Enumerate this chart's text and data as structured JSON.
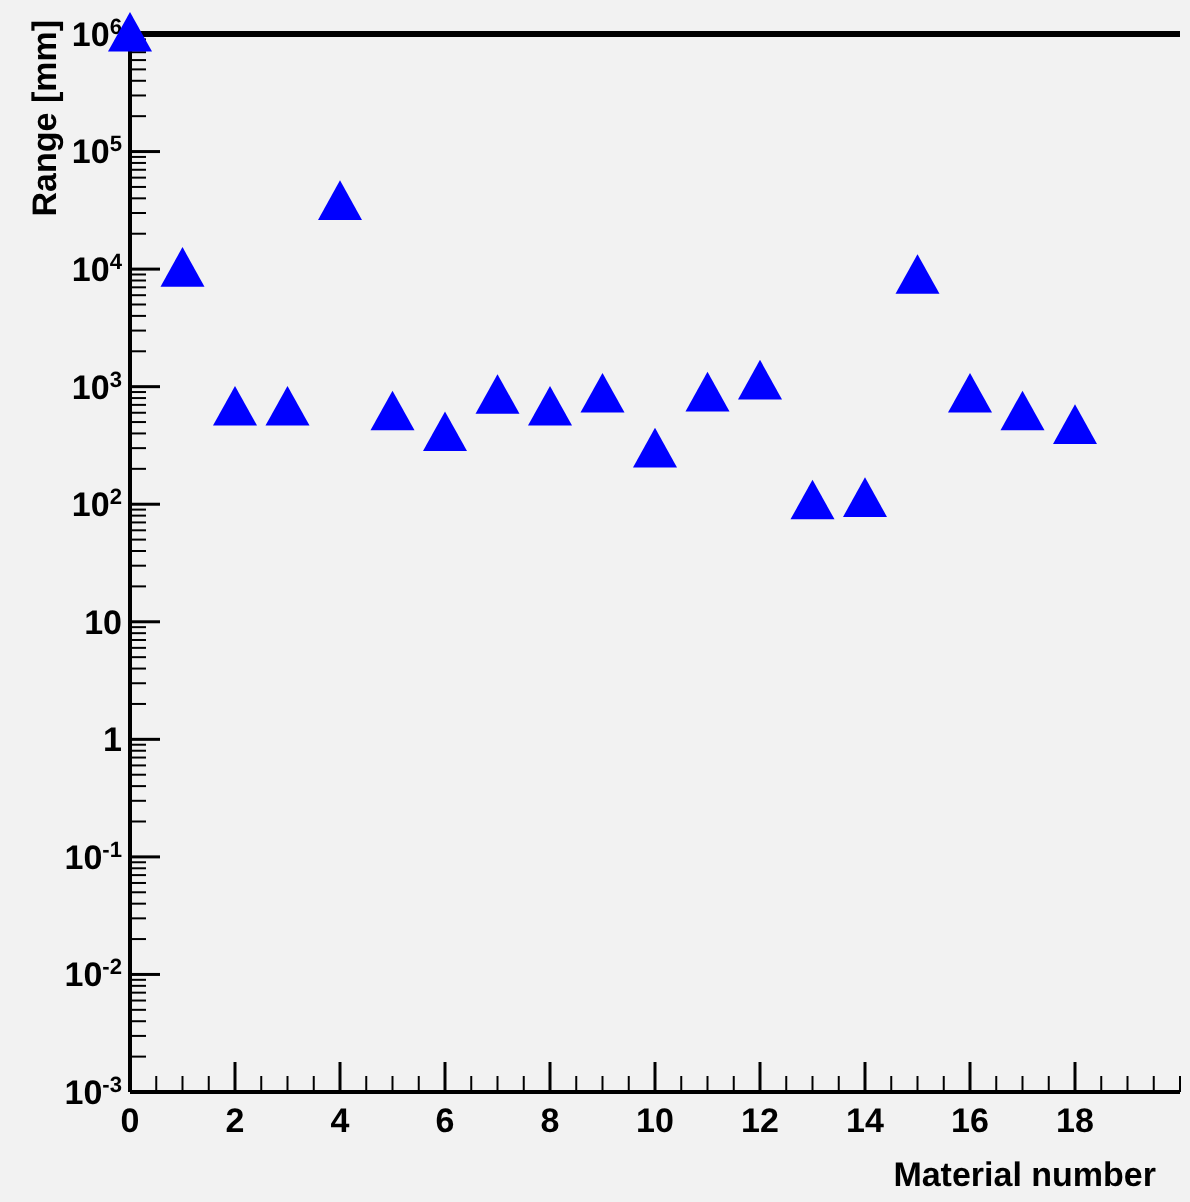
{
  "chart_data": {
    "type": "scatter",
    "xlabel": "Material number",
    "ylabel": "Range [mm]",
    "x": [
      0,
      1,
      2,
      3,
      4,
      5,
      6,
      7,
      8,
      9,
      10,
      11,
      12,
      13,
      14,
      15,
      16,
      17,
      18
    ],
    "series": [
      {
        "color": "#0000ff",
        "values": [
          1000000,
          10000,
          660,
          660,
          37000,
          600,
          400,
          830,
          660,
          850,
          290,
          870,
          1100,
          105,
          110,
          8700,
          850,
          600,
          460
        ]
      }
    ],
    "marker": "triangle",
    "log": "y",
    "xlim": [
      0,
      20
    ],
    "xticks": [
      0,
      2,
      4,
      6,
      8,
      10,
      12,
      14,
      16,
      18
    ],
    "ylim": [
      0.001,
      1000000
    ],
    "yticks": [
      {
        "value": 0.001,
        "label": "10$^{-3}$"
      },
      {
        "value": 0.01,
        "label": "10$^{-2}$"
      },
      {
        "value": 0.1,
        "label": "10$^{-1}$"
      },
      1,
      10,
      {
        "value": 100,
        "label": "10$^{2}$"
      },
      {
        "value": 1000,
        "label": "10$^{3}$"
      },
      {
        "value": 10000,
        "label": "10$^{4}$"
      },
      {
        "value": 100000,
        "label": "10$^{5}$"
      },
      {
        "value": 1000000,
        "label": "10$^{6}$"
      }
    ],
    "ref_lines": [
      {
        "axis": "y",
        "value": 1000000,
        "color": "#000000",
        "line_style": "solid"
      }
    ]
  }
}
